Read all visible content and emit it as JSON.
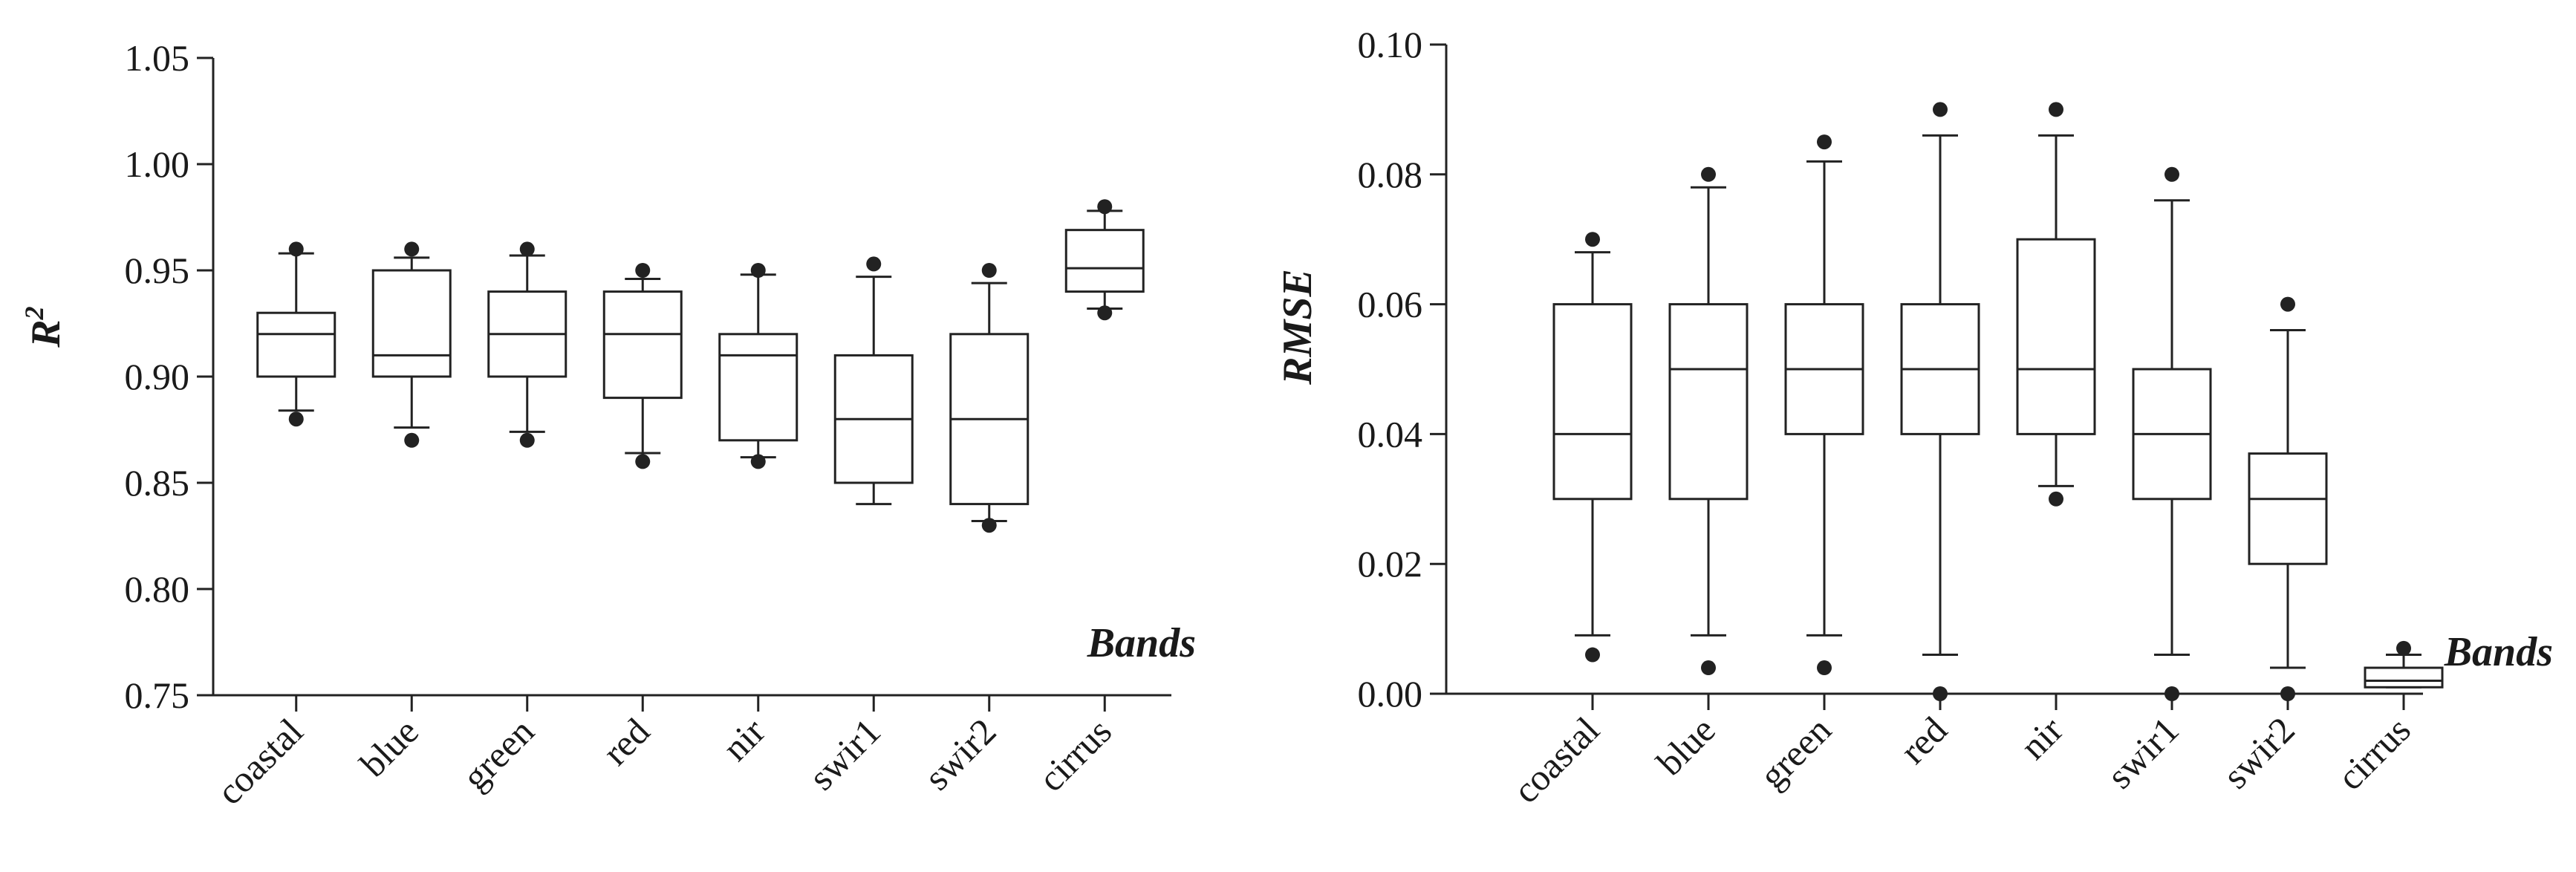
{
  "chart_data": [
    {
      "type": "box",
      "id": "r2",
      "ylabel": "R",
      "ylabel_sup": "2",
      "xlabel": "Bands",
      "ylim": [
        0.75,
        1.05
      ],
      "yticks": [
        0.75,
        0.8,
        0.85,
        0.9,
        0.95,
        1.0,
        1.05
      ],
      "ytick_labels": [
        "0.75",
        "0.80",
        "0.85",
        "0.90",
        "0.95",
        "1.00",
        "1.05"
      ],
      "categories": [
        "coastal",
        "blue",
        "green",
        "red",
        "nir",
        "swir1",
        "swir2",
        "cirrus"
      ],
      "boxes": [
        {
          "whislo": 0.884,
          "q1": 0.9,
          "med": 0.92,
          "q3": 0.93,
          "whishi": 0.958,
          "fliers": [
            0.88,
            0.96
          ]
        },
        {
          "whislo": 0.876,
          "q1": 0.9,
          "med": 0.91,
          "q3": 0.95,
          "whishi": 0.956,
          "fliers": [
            0.87,
            0.96
          ]
        },
        {
          "whislo": 0.874,
          "q1": 0.9,
          "med": 0.92,
          "q3": 0.94,
          "whishi": 0.957,
          "fliers": [
            0.87,
            0.96
          ]
        },
        {
          "whislo": 0.864,
          "q1": 0.89,
          "med": 0.92,
          "q3": 0.94,
          "whishi": 0.946,
          "fliers": [
            0.86,
            0.95
          ]
        },
        {
          "whislo": 0.862,
          "q1": 0.87,
          "med": 0.91,
          "q3": 0.92,
          "whishi": 0.948,
          "fliers": [
            0.86,
            0.95
          ]
        },
        {
          "whislo": 0.84,
          "q1": 0.85,
          "med": 0.88,
          "q3": 0.91,
          "whishi": 0.947,
          "fliers": [
            0.953
          ]
        },
        {
          "whislo": 0.832,
          "q1": 0.84,
          "med": 0.88,
          "q3": 0.92,
          "whishi": 0.944,
          "fliers": [
            0.83,
            0.95
          ]
        },
        {
          "whislo": 0.932,
          "q1": 0.94,
          "med": 0.951,
          "q3": 0.969,
          "whishi": 0.978,
          "fliers": [
            0.93,
            0.98
          ]
        }
      ]
    },
    {
      "type": "box",
      "id": "rmse",
      "ylabel": "RMSE",
      "ylabel_sup": "",
      "xlabel": "Bands",
      "ylim": [
        0.0,
        0.1
      ],
      "yticks": [
        0.0,
        0.02,
        0.04,
        0.06,
        0.08,
        0.1
      ],
      "ytick_labels": [
        "0.00",
        "0.02",
        "0.04",
        "0.06",
        "0.08",
        "0.10"
      ],
      "categories": [
        "coastal",
        "blue",
        "green",
        "red",
        "nir",
        "swir1",
        "swir2",
        "cirrus"
      ],
      "boxes": [
        {
          "whislo": 0.009,
          "q1": 0.03,
          "med": 0.04,
          "q3": 0.06,
          "whishi": 0.068,
          "fliers": [
            0.006,
            0.07
          ]
        },
        {
          "whislo": 0.009,
          "q1": 0.03,
          "med": 0.05,
          "q3": 0.06,
          "whishi": 0.078,
          "fliers": [
            0.004,
            0.08
          ]
        },
        {
          "whislo": 0.009,
          "q1": 0.04,
          "med": 0.05,
          "q3": 0.06,
          "whishi": 0.082,
          "fliers": [
            0.004,
            0.085
          ]
        },
        {
          "whislo": 0.006,
          "q1": 0.04,
          "med": 0.05,
          "q3": 0.06,
          "whishi": 0.086,
          "fliers": [
            0.0,
            0.09
          ]
        },
        {
          "whislo": 0.032,
          "q1": 0.04,
          "med": 0.05,
          "q3": 0.07,
          "whishi": 0.086,
          "fliers": [
            0.03,
            0.09
          ]
        },
        {
          "whislo": 0.006,
          "q1": 0.03,
          "med": 0.04,
          "q3": 0.05,
          "whishi": 0.076,
          "fliers": [
            0.0,
            0.08
          ]
        },
        {
          "whislo": 0.004,
          "q1": 0.02,
          "med": 0.03,
          "q3": 0.037,
          "whishi": 0.056,
          "fliers": [
            0.0,
            0.06
          ]
        },
        {
          "whislo": 0.001,
          "q1": 0.001,
          "med": 0.002,
          "q3": 0.004,
          "whishi": 0.006,
          "fliers": [
            0.007
          ]
        }
      ]
    }
  ]
}
